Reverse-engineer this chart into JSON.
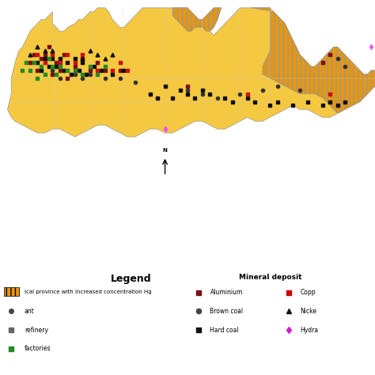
{
  "figure_bg": "#ffffff",
  "map_bg": "#c8d8e8",
  "map_color": "#f5c842",
  "map_border_color": "#999999",
  "hatch_color": "#e8960a",
  "legend_title": "Legend",
  "mineral_deposit_title": "Mineral deposit",
  "legend_left_items": [
    "ical province with increased concentration Hg",
    "ant",
    "refinery",
    "factories"
  ],
  "col1_labels": [
    "Aluminium",
    "Brown coal",
    "Hard coal"
  ],
  "col1_colors": [
    "#7a1010",
    "#444444",
    "#111111"
  ],
  "col1_markers": [
    "s",
    "o",
    "s"
  ],
  "col2_labels": [
    "Copp",
    "Nicke",
    "Hydra"
  ],
  "col2_colors": [
    "#cc0000",
    "#111111",
    "#cc22cc"
  ],
  "col2_markers": [
    "s",
    "^",
    "d"
  ],
  "map_xlim": [
    0,
    100
  ],
  "map_ylim": [
    0,
    70
  ],
  "map_axes": [
    0.0,
    0.27,
    1.0,
    0.73
  ],
  "leg_axes": [
    0.0,
    0.0,
    1.0,
    0.29
  ]
}
